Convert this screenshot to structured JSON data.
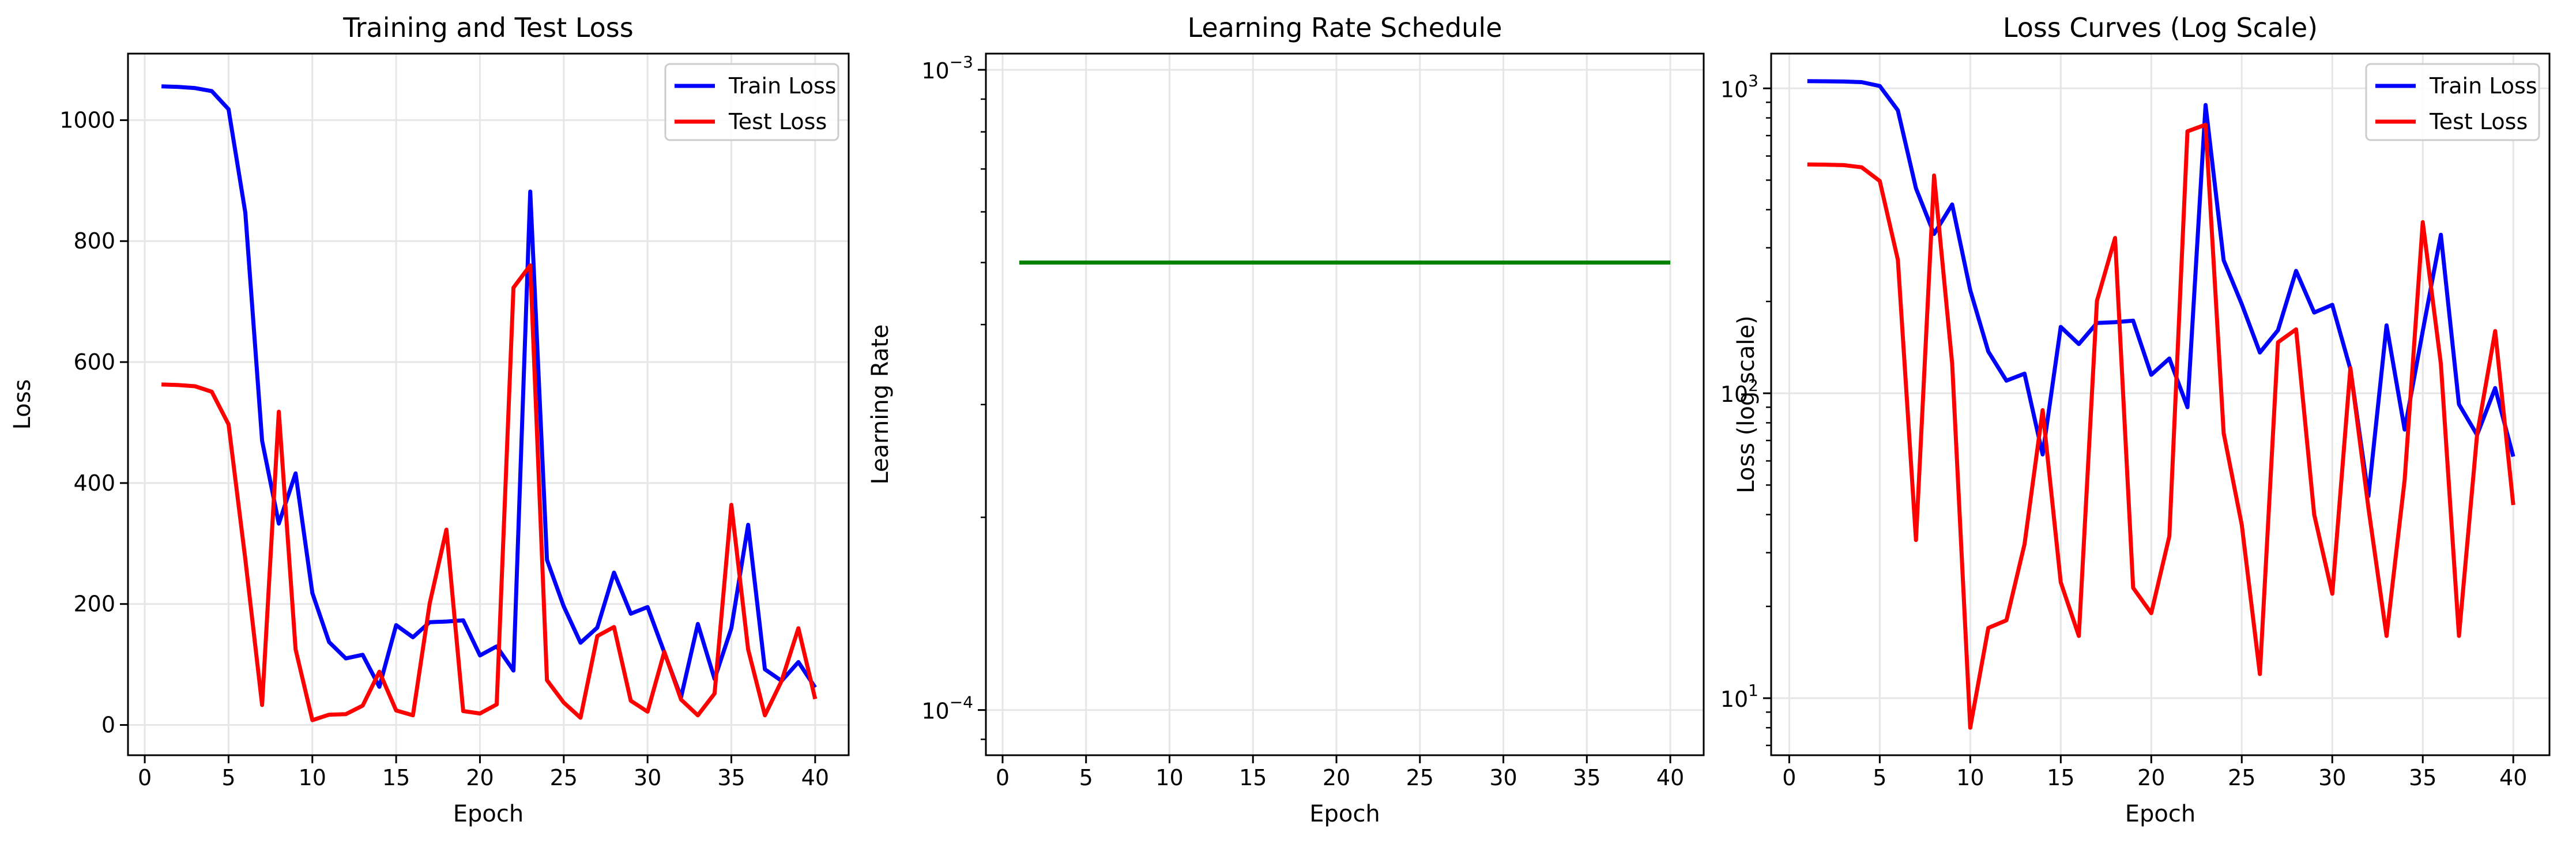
{
  "chart_data": [
    {
      "type": "line",
      "title": "Training and Test Loss",
      "xlabel": "Epoch",
      "ylabel": "Loss",
      "yscale": "linear",
      "xlim": [
        -1,
        42
      ],
      "ylim": [
        -50,
        1110
      ],
      "xticks": [
        0,
        5,
        10,
        15,
        20,
        25,
        30,
        35,
        40
      ],
      "yticks": [
        0,
        200,
        400,
        600,
        800,
        1000
      ],
      "grid": true,
      "legend_position": "top-right",
      "x": [
        1,
        2,
        3,
        4,
        5,
        6,
        7,
        8,
        9,
        10,
        11,
        12,
        13,
        14,
        15,
        16,
        17,
        18,
        19,
        20,
        21,
        22,
        23,
        24,
        25,
        26,
        27,
        28,
        29,
        30,
        31,
        32,
        33,
        34,
        35,
        36,
        37,
        38,
        39,
        40
      ],
      "series": [
        {
          "name": "Train Loss",
          "color": "#0000ff",
          "values": [
            1056,
            1055,
            1053,
            1048,
            1018,
            847,
            470,
            333,
            416,
            218,
            137,
            110,
            116,
            63,
            165,
            145,
            170,
            171,
            173,
            115,
            130,
            90,
            882,
            273,
            196,
            136,
            161,
            252,
            184,
            195,
            120,
            46,
            167,
            76,
            160,
            331,
            92,
            73,
            104,
            62
          ]
        },
        {
          "name": "Test Loss",
          "color": "#ff0000",
          "values": [
            563,
            562,
            560,
            551,
            497,
            274,
            33,
            518,
            125,
            8,
            17,
            18,
            32,
            88,
            24,
            16,
            201,
            323,
            23,
            19,
            34,
            723,
            760,
            74,
            37,
            12,
            147,
            162,
            40,
            22,
            121,
            42,
            16,
            52,
            364,
            125,
            16,
            73,
            160,
            43
          ]
        }
      ]
    },
    {
      "type": "line",
      "title": "Learning Rate Schedule",
      "xlabel": "Epoch",
      "ylabel": "Learning Rate",
      "yscale": "log",
      "xlim": [
        -1,
        42
      ],
      "ylim": [
        8.5e-05,
        0.00106
      ],
      "xticks": [
        0,
        5,
        10,
        15,
        20,
        25,
        30,
        35,
        40
      ],
      "yticks": [
        "10^-4",
        "10^-3"
      ],
      "grid": true,
      "x": [
        1,
        40
      ],
      "series": [
        {
          "color": "#008000",
          "values": [
            0.0005,
            0.0005
          ]
        }
      ]
    },
    {
      "type": "line",
      "title": "Loss Curves (Log Scale)",
      "xlabel": "Epoch",
      "ylabel": "Loss (log scale)",
      "yscale": "log",
      "xlim": [
        -1,
        42
      ],
      "ylim": [
        6.5,
        1300
      ],
      "xticks": [
        0,
        5,
        10,
        15,
        20,
        25,
        30,
        35,
        40
      ],
      "yticks": [
        "10^1",
        "10^2",
        "10^3"
      ],
      "grid": true,
      "legend_position": "top-right",
      "x": [
        1,
        2,
        3,
        4,
        5,
        6,
        7,
        8,
        9,
        10,
        11,
        12,
        13,
        14,
        15,
        16,
        17,
        18,
        19,
        20,
        21,
        22,
        23,
        24,
        25,
        26,
        27,
        28,
        29,
        30,
        31,
        32,
        33,
        34,
        35,
        36,
        37,
        38,
        39,
        40
      ],
      "series": [
        {
          "name": "Train Loss",
          "color": "#0000ff",
          "values": [
            1056,
            1055,
            1053,
            1048,
            1018,
            847,
            470,
            333,
            416,
            218,
            137,
            110,
            116,
            63,
            165,
            145,
            170,
            171,
            173,
            115,
            130,
            90,
            882,
            273,
            196,
            136,
            161,
            252,
            184,
            195,
            120,
            46,
            167,
            76,
            160,
            331,
            92,
            73,
            104,
            62
          ]
        },
        {
          "name": "Test Loss",
          "color": "#ff0000",
          "values": [
            563,
            562,
            560,
            551,
            497,
            274,
            33,
            518,
            125,
            8,
            17,
            18,
            32,
            88,
            24,
            16,
            201,
            323,
            23,
            19,
            34,
            723,
            760,
            74,
            37,
            12,
            147,
            162,
            40,
            22,
            121,
            42,
            16,
            52,
            364,
            125,
            16,
            73,
            160,
            43
          ]
        }
      ]
    }
  ]
}
